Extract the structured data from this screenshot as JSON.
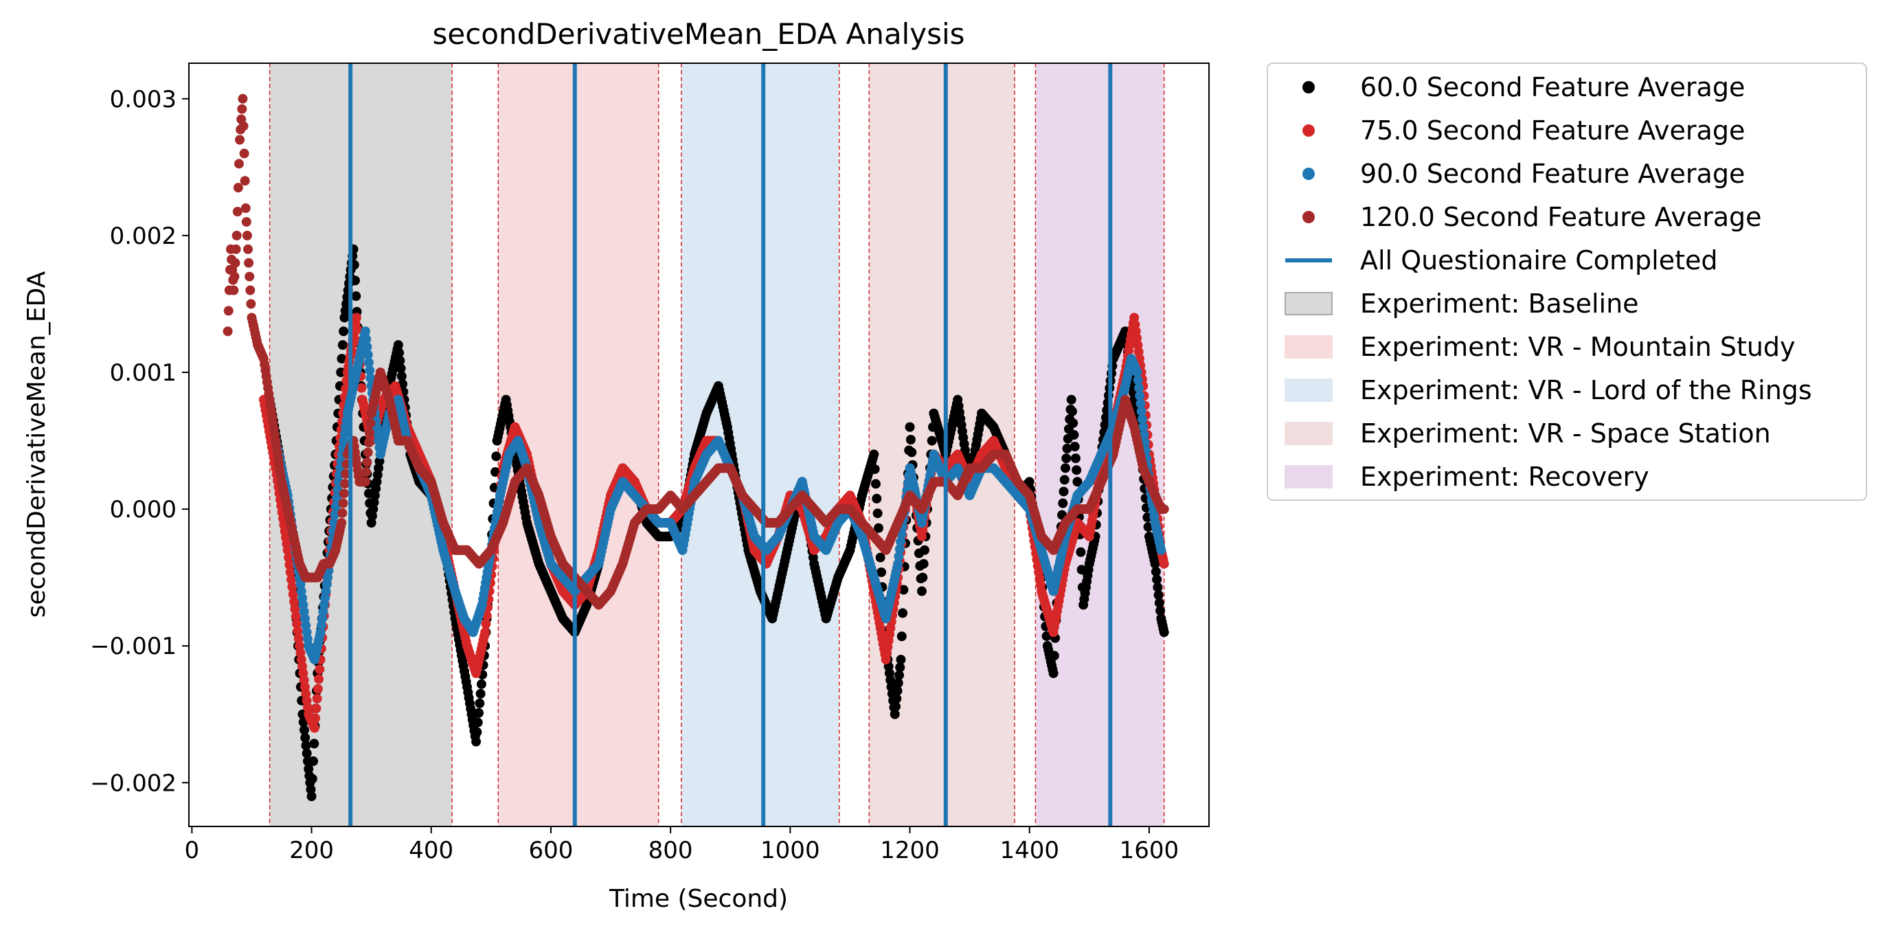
{
  "chart_data": {
    "type": "scatter",
    "title": "secondDerivativeMean_EDA Analysis",
    "xlabel": "Time (Second)",
    "ylabel": "secondDerivativeMean_EDA",
    "xlim": [
      -5,
      1700
    ],
    "ylim": [
      -0.00232,
      0.00326
    ],
    "x_ticks": [
      0,
      200,
      400,
      600,
      800,
      1000,
      1200,
      1400,
      1600
    ],
    "x_tick_labels": [
      "0",
      "200",
      "400",
      "600",
      "800",
      "1000",
      "1200",
      "1400",
      "1600"
    ],
    "y_ticks": [
      0.003,
      0.002,
      0.001,
      0.0,
      -0.001,
      -0.002
    ],
    "y_tick_labels": [
      "0.003",
      "0.002",
      "0.001",
      "0.000",
      "−0.001",
      "−0.002"
    ],
    "legend_position": "outside right",
    "legend": [
      {
        "label": "60.0 Second Feature Average",
        "kind": "marker",
        "color": "#000000"
      },
      {
        "label": "75.0 Second Feature Average",
        "kind": "marker",
        "color": "#d62728"
      },
      {
        "label": "90.0 Second Feature Average",
        "kind": "marker",
        "color": "#1f77b4"
      },
      {
        "label": "120.0 Second Feature Average",
        "kind": "marker",
        "color": "#a52a2a"
      },
      {
        "label": "All Questionaire Completed",
        "kind": "line",
        "color": "#1f77b4"
      },
      {
        "label": "Experiment: Baseline",
        "kind": "patch",
        "color": "#d9d9d9"
      },
      {
        "label": "Experiment: VR - Mountain Study",
        "kind": "patch",
        "color": "#f8dcdd"
      },
      {
        "label": "Experiment: VR - Lord of the Rings",
        "kind": "patch",
        "color": "#dce9f4"
      },
      {
        "label": "Experiment: VR - Space Station",
        "kind": "patch",
        "color": "#f1dfdf"
      },
      {
        "label": "Experiment: Recovery",
        "kind": "patch",
        "color": "#ead9ec"
      }
    ],
    "experiment_regions": [
      {
        "name": "Experiment: Baseline",
        "start": 130,
        "end": 435,
        "color": "#d9d9d9"
      },
      {
        "name": "Experiment: VR - Mountain Study",
        "start": 512,
        "end": 780,
        "color": "#f8dcdd"
      },
      {
        "name": "Experiment: VR - Lord of the Rings",
        "start": 818,
        "end": 1082,
        "color": "#dce9f4"
      },
      {
        "name": "Experiment: VR - Space Station",
        "start": 1132,
        "end": 1375,
        "color": "#f1dfdf"
      },
      {
        "name": "Experiment: Recovery",
        "start": 1410,
        "end": 1625,
        "color": "#ead9ec"
      }
    ],
    "questionnaire_completed_x": [
      265,
      640,
      955,
      1260,
      1535
    ],
    "series": [
      {
        "name": "60.0 Second Feature Average",
        "color": "#000000",
        "x": [
          130,
          150,
          170,
          185,
          195,
          200,
          210,
          225,
          240,
          255,
          270,
          280,
          290,
          300,
          315,
          330,
          345,
          355,
          365,
          380,
          400,
          420,
          440,
          460,
          475,
          490,
          500,
          510,
          525,
          540,
          560,
          580,
          600,
          620,
          640,
          660,
          680,
          700,
          720,
          740,
          760,
          780,
          800,
          820,
          840,
          860,
          880,
          895,
          910,
          930,
          950,
          970,
          985,
          1000,
          1020,
          1040,
          1060,
          1080,
          1100,
          1120,
          1140,
          1160,
          1175,
          1185,
          1200,
          1220,
          1240,
          1260,
          1280,
          1300,
          1320,
          1340,
          1360,
          1380,
          1400,
          1420,
          1430,
          1440,
          1450,
          1460,
          1470,
          1480,
          1490,
          1500,
          1510,
          1520,
          1540,
          1560,
          1575,
          1585,
          1600,
          1610,
          1620,
          1625
        ],
        "y": [
          0.0008,
          0.0003,
          -0.0005,
          -0.0015,
          -0.0019,
          -0.0021,
          -0.0012,
          -0.0004,
          0.0004,
          0.0014,
          0.0019,
          0.0011,
          0.0004,
          -0.0001,
          0.0004,
          0.0009,
          0.0012,
          0.0008,
          0.0004,
          0.0002,
          0.0001,
          -0.0002,
          -0.0008,
          -0.0013,
          -0.0017,
          -0.001,
          -0.0003,
          0.0005,
          0.0008,
          0.0004,
          -0.0001,
          -0.0004,
          -0.0006,
          -0.0008,
          -0.0009,
          -0.0007,
          -0.0004,
          0.0001,
          0.0003,
          0.0002,
          -0.0001,
          -0.0002,
          -0.0002,
          -0.0001,
          0.0004,
          0.0007,
          0.0009,
          0.0006,
          0.0002,
          -0.0003,
          -0.0006,
          -0.0008,
          -0.0005,
          -0.0002,
          0.0002,
          -0.0004,
          -0.0008,
          -0.0005,
          -0.0003,
          0.0001,
          0.0004,
          -0.001,
          -0.0015,
          -0.0011,
          0.0006,
          -0.0006,
          0.0007,
          0.0004,
          0.0008,
          0.0002,
          0.0007,
          0.0006,
          0.0004,
          0.0001,
          0.0002,
          -0.0005,
          -0.001,
          -0.0012,
          -0.0003,
          0.0003,
          0.0008,
          0.0002,
          -0.0007,
          -0.0004,
          -0.0002,
          0.0004,
          0.0011,
          0.0013,
          0.0008,
          0.0005,
          -0.0002,
          -0.0004,
          -0.0008,
          -0.0009
        ]
      },
      {
        "name": "75.0 Second Feature Average",
        "color": "#d62728",
        "x": [
          120,
          140,
          160,
          180,
          195,
          205,
          215,
          230,
          245,
          260,
          275,
          285,
          300,
          320,
          340,
          360,
          380,
          400,
          420,
          440,
          460,
          475,
          490,
          505,
          520,
          540,
          560,
          580,
          600,
          620,
          640,
          660,
          680,
          700,
          720,
          740,
          760,
          780,
          800,
          820,
          840,
          860,
          880,
          900,
          920,
          940,
          960,
          980,
          1000,
          1020,
          1040,
          1060,
          1080,
          1100,
          1120,
          1140,
          1160,
          1180,
          1200,
          1220,
          1240,
          1260,
          1280,
          1300,
          1320,
          1340,
          1360,
          1380,
          1400,
          1420,
          1440,
          1460,
          1480,
          1500,
          1520,
          1540,
          1560,
          1575,
          1590,
          1600,
          1610,
          1620,
          1625
        ],
        "y": [
          0.0008,
          0.0003,
          -0.0003,
          -0.001,
          -0.0015,
          -0.0016,
          -0.0011,
          -0.0003,
          0.0004,
          0.001,
          0.0014,
          0.0008,
          0.0005,
          0.0008,
          0.0009,
          0.0006,
          0.0004,
          0.0002,
          -0.0002,
          -0.0006,
          -0.001,
          -0.0012,
          -0.0009,
          -0.0003,
          0.0003,
          0.0006,
          0.0004,
          0.0,
          -0.0004,
          -0.0006,
          -0.0007,
          -0.0006,
          -0.0003,
          0.0001,
          0.0003,
          0.0002,
          0.0,
          -0.0001,
          -0.0001,
          0.0,
          0.0003,
          0.0005,
          0.0005,
          0.0003,
          0.0001,
          -0.0003,
          -0.0004,
          -0.0002,
          0.0001,
          0.0,
          -0.0003,
          -0.0002,
          0.0,
          0.0001,
          -0.0001,
          -0.0006,
          -0.0011,
          -0.0005,
          0.0003,
          -0.0002,
          0.0004,
          0.0003,
          0.0004,
          0.0002,
          0.0004,
          0.0005,
          0.0003,
          0.0001,
          0.0,
          -0.0006,
          -0.0009,
          -0.0004,
          -0.0001,
          -0.0002,
          0.0003,
          0.0006,
          0.001,
          0.0014,
          0.0009,
          0.0004,
          0.0001,
          -0.0003,
          -0.0004
        ]
      },
      {
        "name": "90.0 Second Feature Average",
        "color": "#1f77b4",
        "x": [
          140,
          160,
          180,
          195,
          205,
          215,
          230,
          245,
          260,
          275,
          290,
          300,
          315,
          330,
          345,
          360,
          380,
          400,
          420,
          440,
          455,
          470,
          485,
          500,
          515,
          530,
          545,
          560,
          580,
          600,
          620,
          640,
          660,
          680,
          700,
          720,
          740,
          760,
          780,
          800,
          820,
          840,
          860,
          880,
          900,
          920,
          940,
          960,
          980,
          1000,
          1020,
          1040,
          1060,
          1080,
          1100,
          1120,
          1140,
          1160,
          1180,
          1200,
          1220,
          1240,
          1260,
          1280,
          1300,
          1320,
          1340,
          1360,
          1380,
          1400,
          1420,
          1440,
          1460,
          1480,
          1500,
          1520,
          1540,
          1560,
          1570,
          1580,
          1590,
          1600,
          1610,
          1620
        ],
        "y": [
          0.0005,
          0.0001,
          -0.0005,
          -0.001,
          -0.0011,
          -0.0009,
          -0.0004,
          0.0002,
          0.0007,
          0.001,
          0.0013,
          0.0009,
          0.0004,
          0.0007,
          0.0008,
          0.0005,
          0.0003,
          0.0001,
          -0.0003,
          -0.0006,
          -0.0008,
          -0.0009,
          -0.0007,
          -0.0003,
          0.0001,
          0.0004,
          0.0005,
          0.0003,
          -0.0001,
          -0.0004,
          -0.0005,
          -0.0006,
          -0.0005,
          -0.0004,
          0.0,
          0.0002,
          0.0001,
          0.0,
          -0.0001,
          -0.0001,
          -0.0003,
          0.0002,
          0.0004,
          0.0005,
          0.0003,
          0.0001,
          -0.0002,
          -0.0003,
          -0.0002,
          0.0,
          0.0002,
          -0.0002,
          -0.0003,
          -0.0001,
          0.0,
          -0.0002,
          -0.0005,
          -0.0008,
          -0.0004,
          0.0003,
          -0.0001,
          0.0004,
          0.0002,
          0.0003,
          0.0001,
          0.0003,
          0.0003,
          0.0002,
          0.0001,
          0.0,
          -0.0003,
          -0.0006,
          -0.0002,
          0.0001,
          0.0002,
          0.0004,
          0.0006,
          0.0009,
          0.0011,
          0.001,
          0.0006,
          0.0002,
          -0.0001,
          -0.0003
        ]
      },
      {
        "name": "120.0 Second Feature Average",
        "color": "#a52a2a",
        "x": [
          60,
          65,
          70,
          75,
          80,
          85,
          90,
          95,
          100,
          110,
          120,
          130,
          140,
          150,
          160,
          170,
          180,
          190,
          200,
          210,
          220,
          230,
          240,
          250,
          260,
          270,
          280,
          290,
          300,
          315,
          330,
          345,
          360,
          380,
          400,
          420,
          440,
          460,
          480,
          500,
          520,
          540,
          560,
          580,
          600,
          620,
          640,
          660,
          680,
          700,
          720,
          740,
          760,
          780,
          800,
          820,
          840,
          860,
          880,
          900,
          920,
          940,
          960,
          980,
          1000,
          1020,
          1040,
          1060,
          1080,
          1100,
          1120,
          1140,
          1160,
          1180,
          1200,
          1220,
          1240,
          1260,
          1280,
          1300,
          1320,
          1340,
          1360,
          1380,
          1400,
          1420,
          1440,
          1460,
          1480,
          1500,
          1520,
          1540,
          1560,
          1575,
          1590,
          1600,
          1610,
          1620,
          1625
        ],
        "y": [
          0.0013,
          0.0019,
          0.0016,
          0.002,
          0.0027,
          0.003,
          0.0022,
          0.0018,
          0.0014,
          0.0012,
          0.0011,
          0.0008,
          0.0005,
          0.0002,
          0.0,
          -0.0002,
          -0.0004,
          -0.0005,
          -0.0005,
          -0.0005,
          -0.0004,
          -0.0004,
          -0.0003,
          -0.0001,
          0.0004,
          0.0005,
          0.0002,
          0.0002,
          0.0007,
          0.001,
          0.0008,
          0.0005,
          0.0005,
          0.0003,
          0.0002,
          -0.0001,
          -0.0003,
          -0.0003,
          -0.0004,
          -0.0003,
          -0.0001,
          0.0002,
          0.0003,
          0.0001,
          -0.0002,
          -0.0004,
          -0.0005,
          -0.0006,
          -0.0007,
          -0.0006,
          -0.0004,
          -0.0001,
          0.0,
          0.0,
          0.0001,
          0.0,
          0.0001,
          0.0002,
          0.0003,
          0.0003,
          0.0001,
          0.0,
          -0.0001,
          -0.0001,
          0.0,
          0.0001,
          0.0,
          -0.0001,
          0.0,
          0.0,
          -0.0001,
          -0.0002,
          -0.0003,
          -0.0001,
          0.0001,
          0.0,
          0.0002,
          0.0002,
          0.0001,
          0.0003,
          0.0003,
          0.0004,
          0.0004,
          0.0002,
          0.0001,
          -0.0002,
          -0.0003,
          -0.0001,
          0.0,
          0.0,
          0.0002,
          0.0004,
          0.0008,
          0.0006,
          0.0003,
          0.0002,
          0.0001,
          0.0,
          0.0
        ]
      }
    ]
  }
}
